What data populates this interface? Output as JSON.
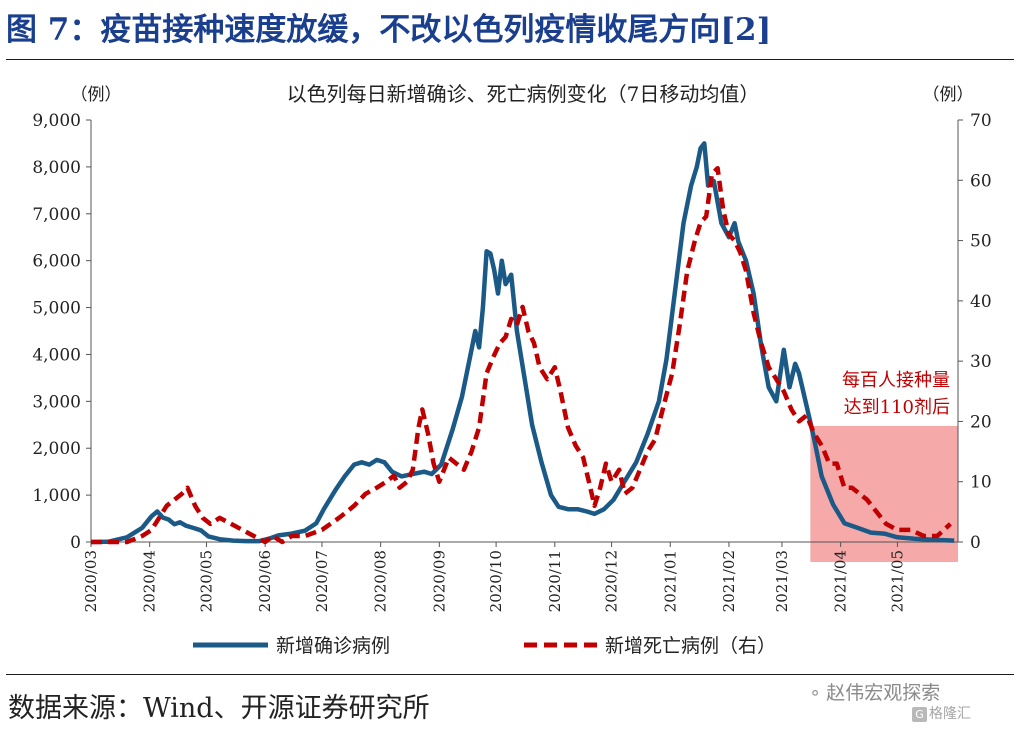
{
  "figure": {
    "title": "图 7：疫苗接种速度放缓，不改以色列疫情收尾方向[2]",
    "source": "数据来源：Wind、开源证券研究所"
  },
  "watermark": {
    "brand_text": "赵伟宏观探索",
    "brand_icon": "wechat-icon",
    "platform_text": "格隆汇",
    "platform_icon_glyph": "G"
  },
  "chart_data": {
    "type": "line",
    "title": "以色列每日新增确诊、死亡病例变化（7日移动均值）",
    "ylabel_left": "（例）",
    "ylabel_right": "（例）",
    "x_ticks": [
      "2020/03",
      "2020/04",
      "2020/05",
      "2020/06",
      "2020/07",
      "2020/08",
      "2020/09",
      "2020/10",
      "2020/11",
      "2020/12",
      "2021/01",
      "2021/02",
      "2021/03",
      "2021/04",
      "2021/05"
    ],
    "y_left": {
      "ticks": [
        "0",
        "1,000",
        "2,000",
        "3,000",
        "4,000",
        "5,000",
        "6,000",
        "7,000",
        "8,000",
        "9,000"
      ],
      "min": 0,
      "max": 9000
    },
    "y_right": {
      "ticks": [
        "0",
        "10",
        "20",
        "30",
        "40",
        "50",
        "60",
        "70"
      ],
      "min": 0,
      "max": 70
    },
    "grid": false,
    "legend_position": "bottom",
    "annotation": {
      "lines": [
        "每百人接种量",
        "达到110剂后"
      ],
      "x_start": "2021/03/16",
      "x_end": "2021/06/02",
      "fill": "#f4a0a0",
      "text_color": "#c00000"
    },
    "series": [
      {
        "name": "新增确诊病例",
        "axis": "left",
        "color": "#1b5a87",
        "dash": "solid",
        "points": [
          [
            "2020/03/01",
            0
          ],
          [
            "2020/03/10",
            5
          ],
          [
            "2020/03/20",
            100
          ],
          [
            "2020/03/28",
            300
          ],
          [
            "2020/04/02",
            550
          ],
          [
            "2020/04/05",
            650
          ],
          [
            "2020/04/08",
            520
          ],
          [
            "2020/04/11",
            480
          ],
          [
            "2020/04/14",
            380
          ],
          [
            "2020/04/17",
            420
          ],
          [
            "2020/04/20",
            350
          ],
          [
            "2020/04/24",
            300
          ],
          [
            "2020/04/28",
            250
          ],
          [
            "2020/05/02",
            120
          ],
          [
            "2020/05/08",
            60
          ],
          [
            "2020/05/15",
            30
          ],
          [
            "2020/05/22",
            20
          ],
          [
            "2020/05/29",
            20
          ],
          [
            "2020/06/03",
            70
          ],
          [
            "2020/06/08",
            140
          ],
          [
            "2020/06/15",
            180
          ],
          [
            "2020/06/22",
            240
          ],
          [
            "2020/06/28",
            400
          ],
          [
            "2020/07/02",
            700
          ],
          [
            "2020/07/08",
            1100
          ],
          [
            "2020/07/13",
            1400
          ],
          [
            "2020/07/18",
            1650
          ],
          [
            "2020/07/22",
            1700
          ],
          [
            "2020/07/26",
            1650
          ],
          [
            "2020/07/30",
            1750
          ],
          [
            "2020/08/03",
            1700
          ],
          [
            "2020/08/07",
            1500
          ],
          [
            "2020/08/12",
            1400
          ],
          [
            "2020/08/18",
            1450
          ],
          [
            "2020/08/24",
            1500
          ],
          [
            "2020/08/28",
            1450
          ],
          [
            "2020/09/02",
            1650
          ],
          [
            "2020/09/08",
            2400
          ],
          [
            "2020/09/13",
            3100
          ],
          [
            "2020/09/18",
            4100
          ],
          [
            "2020/09/20",
            4500
          ],
          [
            "2020/09/22",
            4150
          ],
          [
            "2020/09/24",
            5000
          ],
          [
            "2020/09/26",
            6200
          ],
          [
            "2020/09/28",
            6150
          ],
          [
            "2020/09/30",
            5800
          ],
          [
            "2020/10/02",
            5300
          ],
          [
            "2020/10/04",
            6000
          ],
          [
            "2020/10/06",
            5500
          ],
          [
            "2020/10/09",
            5700
          ],
          [
            "2020/10/12",
            4500
          ],
          [
            "2020/10/16",
            3500
          ],
          [
            "2020/10/20",
            2500
          ],
          [
            "2020/10/25",
            1700
          ],
          [
            "2020/10/30",
            1000
          ],
          [
            "2020/11/03",
            750
          ],
          [
            "2020/11/08",
            700
          ],
          [
            "2020/11/13",
            700
          ],
          [
            "2020/11/18",
            650
          ],
          [
            "2020/11/22",
            600
          ],
          [
            "2020/11/27",
            700
          ],
          [
            "2020/12/02",
            900
          ],
          [
            "2020/12/08",
            1300
          ],
          [
            "2020/12/14",
            1700
          ],
          [
            "2020/12/20",
            2300
          ],
          [
            "2020/12/26",
            3000
          ],
          [
            "2020/12/30",
            3900
          ],
          [
            "2021/01/04",
            5500
          ],
          [
            "2021/01/08",
            6800
          ],
          [
            "2021/01/12",
            7600
          ],
          [
            "2021/01/15",
            8000
          ],
          [
            "2021/01/17",
            8400
          ],
          [
            "2021/01/19",
            8500
          ],
          [
            "2021/01/21",
            7600
          ],
          [
            "2021/01/24",
            7700
          ],
          [
            "2021/01/28",
            6800
          ],
          [
            "2021/02/01",
            6500
          ],
          [
            "2021/02/04",
            6800
          ],
          [
            "2021/02/06",
            6400
          ],
          [
            "2021/02/10",
            6000
          ],
          [
            "2021/02/14",
            5300
          ],
          [
            "2021/02/18",
            4200
          ],
          [
            "2021/02/22",
            3300
          ],
          [
            "2021/02/26",
            3000
          ],
          [
            "2021/03/02",
            4100
          ],
          [
            "2021/03/05",
            3300
          ],
          [
            "2021/03/08",
            3800
          ],
          [
            "2021/03/10",
            3600
          ],
          [
            "2021/03/14",
            2900
          ],
          [
            "2021/03/18",
            2200
          ],
          [
            "2021/03/22",
            1400
          ],
          [
            "2021/03/28",
            800
          ],
          [
            "2021/04/03",
            400
          ],
          [
            "2021/04/10",
            300
          ],
          [
            "2021/04/17",
            200
          ],
          [
            "2021/04/24",
            180
          ],
          [
            "2021/05/01",
            100
          ],
          [
            "2021/05/10",
            70
          ],
          [
            "2021/05/20",
            50
          ],
          [
            "2021/05/31",
            30
          ]
        ]
      },
      {
        "name": "新增死亡病例（右）",
        "axis": "right",
        "color": "#c00000",
        "dash": "dashed",
        "points": [
          [
            "2020/03/01",
            0
          ],
          [
            "2020/03/20",
            0
          ],
          [
            "2020/03/28",
            1
          ],
          [
            "2020/04/02",
            2
          ],
          [
            "2020/04/06",
            4
          ],
          [
            "2020/04/10",
            6
          ],
          [
            "2020/04/14",
            7
          ],
          [
            "2020/04/18",
            8
          ],
          [
            "2020/04/21",
            9
          ],
          [
            "2020/04/25",
            6
          ],
          [
            "2020/04/29",
            4
          ],
          [
            "2020/05/03",
            3
          ],
          [
            "2020/05/08",
            4
          ],
          [
            "2020/05/14",
            3
          ],
          [
            "2020/05/20",
            2
          ],
          [
            "2020/05/26",
            1
          ],
          [
            "2020/06/01",
            0
          ],
          [
            "2020/06/05",
            1
          ],
          [
            "2020/06/10",
            0
          ],
          [
            "2020/06/15",
            1
          ],
          [
            "2020/06/22",
            1
          ],
          [
            "2020/07/01",
            2
          ],
          [
            "2020/07/10",
            4
          ],
          [
            "2020/07/18",
            6
          ],
          [
            "2020/07/24",
            8
          ],
          [
            "2020/07/30",
            9
          ],
          [
            "2020/08/04",
            10
          ],
          [
            "2020/08/08",
            11
          ],
          [
            "2020/08/11",
            9
          ],
          [
            "2020/08/15",
            10
          ],
          [
            "2020/08/18",
            12
          ],
          [
            "2020/08/21",
            19
          ],
          [
            "2020/08/23",
            22
          ],
          [
            "2020/08/26",
            18
          ],
          [
            "2020/08/29",
            13
          ],
          [
            "2020/09/01",
            10
          ],
          [
            "2020/09/06",
            14
          ],
          [
            "2020/09/10",
            13
          ],
          [
            "2020/09/14",
            12
          ],
          [
            "2020/09/18",
            15
          ],
          [
            "2020/09/22",
            19
          ],
          [
            "2020/09/26",
            28
          ],
          [
            "2020/09/30",
            31
          ],
          [
            "2020/10/03",
            33
          ],
          [
            "2020/10/06",
            34
          ],
          [
            "2020/10/09",
            37
          ],
          [
            "2020/10/12",
            36
          ],
          [
            "2020/10/15",
            39
          ],
          [
            "2020/10/18",
            35
          ],
          [
            "2020/10/21",
            33
          ],
          [
            "2020/10/24",
            29
          ],
          [
            "2020/10/28",
            27
          ],
          [
            "2020/11/01",
            29
          ],
          [
            "2020/11/04",
            25
          ],
          [
            "2020/11/08",
            19
          ],
          [
            "2020/11/12",
            16
          ],
          [
            "2020/11/16",
            14
          ],
          [
            "2020/11/19",
            10
          ],
          [
            "2020/11/22",
            6
          ],
          [
            "2020/11/25",
            9
          ],
          [
            "2020/11/28",
            13
          ],
          [
            "2020/12/01",
            10
          ],
          [
            "2020/12/05",
            12
          ],
          [
            "2020/12/08",
            8
          ],
          [
            "2020/12/12",
            9
          ],
          [
            "2020/12/16",
            12
          ],
          [
            "2020/12/20",
            15
          ],
          [
            "2020/12/24",
            17
          ],
          [
            "2020/12/28",
            22
          ],
          [
            "2021/01/02",
            28
          ],
          [
            "2021/01/06",
            36
          ],
          [
            "2021/01/10",
            45
          ],
          [
            "2021/01/14",
            50
          ],
          [
            "2021/01/17",
            53
          ],
          [
            "2021/01/20",
            54
          ],
          [
            "2021/01/23",
            61
          ],
          [
            "2021/01/26",
            62
          ],
          [
            "2021/01/29",
            55
          ],
          [
            "2021/02/01",
            51
          ],
          [
            "2021/02/04",
            50
          ],
          [
            "2021/02/07",
            48
          ],
          [
            "2021/02/10",
            45
          ],
          [
            "2021/02/14",
            38
          ],
          [
            "2021/02/18",
            33
          ],
          [
            "2021/02/22",
            29
          ],
          [
            "2021/02/26",
            27
          ],
          [
            "2021/03/02",
            25
          ],
          [
            "2021/03/06",
            22
          ],
          [
            "2021/03/10",
            20
          ],
          [
            "2021/03/14",
            21
          ],
          [
            "2021/03/18",
            18
          ],
          [
            "2021/03/22",
            16
          ],
          [
            "2021/03/26",
            13
          ],
          [
            "2021/03/30",
            13
          ],
          [
            "2021/04/03",
            9
          ],
          [
            "2021/04/07",
            9
          ],
          [
            "2021/04/11",
            8
          ],
          [
            "2021/04/15",
            7
          ],
          [
            "2021/04/20",
            5
          ],
          [
            "2021/04/25",
            3
          ],
          [
            "2021/05/01",
            2
          ],
          [
            "2021/05/08",
            2
          ],
          [
            "2021/05/15",
            1
          ],
          [
            "2021/05/22",
            1
          ],
          [
            "2021/05/29",
            3
          ]
        ]
      }
    ]
  }
}
